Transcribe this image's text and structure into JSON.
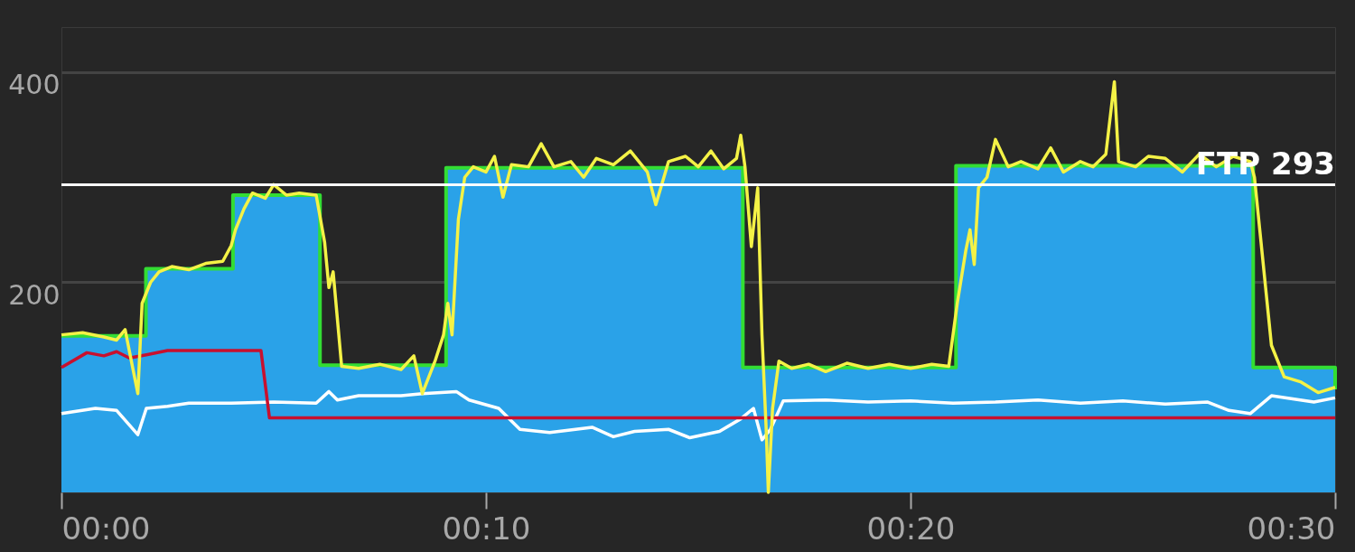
{
  "chart_data": {
    "type": "line",
    "xlim": [
      0,
      30
    ],
    "xticks": [
      {
        "value": 0,
        "label": "00:00"
      },
      {
        "value": 10,
        "label": "00:10"
      },
      {
        "value": 20,
        "label": "00:20"
      },
      {
        "value": 30,
        "label": "00:30"
      }
    ],
    "ylim": [
      0,
      443
    ],
    "yticks": [
      200,
      400
    ],
    "grid": "y",
    "ref_lines": [
      {
        "axis": "y",
        "value": 293,
        "label": "FTP 293",
        "color": "#ffffff"
      }
    ],
    "series": [
      {
        "type": "area",
        "color": "#2aa2e8",
        "x": [
          0,
          1.99,
          4.04,
          6.09,
          9.06,
          16.05,
          21.07,
          28.07,
          30
        ],
        "values": [
          149,
          213,
          283,
          121,
          309,
          119,
          311,
          119,
          98
        ]
      },
      {
        "type": "step",
        "color": "#33dd33",
        "x": [
          0,
          1.99,
          4.04,
          6.09,
          9.06,
          16.05,
          21.07,
          28.07,
          30
        ],
        "values": [
          149,
          213,
          283,
          121,
          309,
          119,
          311,
          119,
          98
        ]
      },
      {
        "color": "#ffffff",
        "x": [
          0,
          0.8,
          1.3,
          1.8,
          2.0,
          2.5,
          3,
          4,
          5,
          6,
          6.3,
          6.5,
          7,
          8,
          8.5,
          9.3,
          9.6,
          10.3,
          10.8,
          11.5,
          12.5,
          13,
          13.5,
          14.3,
          14.8,
          15.5,
          16,
          16.3,
          16.5,
          16.7,
          17,
          18,
          19,
          20,
          21,
          22,
          23,
          24,
          25,
          26,
          27,
          27.5,
          28,
          28.5,
          29.5,
          30
        ],
        "values": [
          75,
          80,
          78,
          55,
          80,
          82,
          85,
          85,
          86,
          85,
          96,
          88,
          92,
          92,
          94,
          96,
          88,
          80,
          60,
          57,
          62,
          53,
          58,
          60,
          52,
          58,
          70,
          80,
          50,
          60,
          87,
          88,
          86,
          87,
          85,
          86,
          88,
          85,
          87,
          84,
          86,
          78,
          75,
          92,
          86,
          90
        ]
      },
      {
        "color": "#c8102e",
        "x": [
          0,
          0.6,
          1,
          1.3,
          1.6,
          2,
          2.5,
          4.7,
          4.9,
          30
        ],
        "values": [
          119,
          133,
          130,
          134,
          128,
          131,
          135,
          135,
          71,
          71
        ]
      },
      {
        "color": "#f4f246",
        "x": [
          0,
          0.5,
          1.0,
          1.3,
          1.5,
          1.8,
          1.9,
          2.1,
          2.3,
          2.6,
          3.0,
          3.4,
          3.8,
          4.0,
          4.1,
          4.3,
          4.5,
          4.8,
          5.0,
          5.3,
          5.6,
          6.0,
          6.2,
          6.3,
          6.4,
          6.6,
          7.0,
          7.5,
          8.0,
          8.3,
          8.5,
          8.8,
          9.0,
          9.1,
          9.2,
          9.35,
          9.5,
          9.7,
          10,
          10.2,
          10.4,
          10.6,
          11,
          11.3,
          11.6,
          12,
          12.3,
          12.6,
          13,
          13.4,
          13.8,
          14,
          14.3,
          14.7,
          15,
          15.3,
          15.6,
          15.9,
          16.0,
          16.1,
          16.25,
          16.4,
          16.5,
          16.6,
          16.65,
          16.75,
          16.9,
          17.2,
          17.6,
          18,
          18.5,
          19,
          19.5,
          20,
          20.5,
          20.9,
          21.1,
          21.3,
          21.4,
          21.5,
          21.6,
          21.8,
          22.0,
          22.3,
          22.6,
          23,
          23.3,
          23.6,
          24,
          24.3,
          24.6,
          24.8,
          24.9,
          25.3,
          25.6,
          26,
          26.4,
          26.8,
          27.2,
          27.6,
          28.0,
          28.1,
          28.3,
          28.5,
          28.8,
          29.2,
          29.6,
          30
        ],
        "values": [
          150,
          152,
          148,
          145,
          155,
          94,
          180,
          200,
          210,
          215,
          212,
          218,
          220,
          235,
          250,
          270,
          285,
          280,
          293,
          283,
          285,
          283,
          238,
          195,
          210,
          120,
          118,
          122,
          117,
          130,
          94,
          125,
          150,
          180,
          150,
          260,
          300,
          310,
          305,
          320,
          281,
          312,
          310,
          332,
          310,
          315,
          300,
          318,
          312,
          325,
          305,
          274,
          315,
          320,
          310,
          325,
          308,
          318,
          340,
          310,
          234,
          290,
          150,
          60,
          0,
          80,
          125,
          118,
          122,
          115,
          123,
          118,
          122,
          118,
          122,
          120,
          180,
          230,
          250,
          217,
          290,
          300,
          336,
          310,
          315,
          308,
          328,
          305,
          315,
          310,
          322,
          391,
          315,
          310,
          320,
          318,
          305,
          322,
          310,
          320,
          315,
          300,
          220,
          140,
          110,
          105,
          95,
          100
        ]
      }
    ]
  }
}
